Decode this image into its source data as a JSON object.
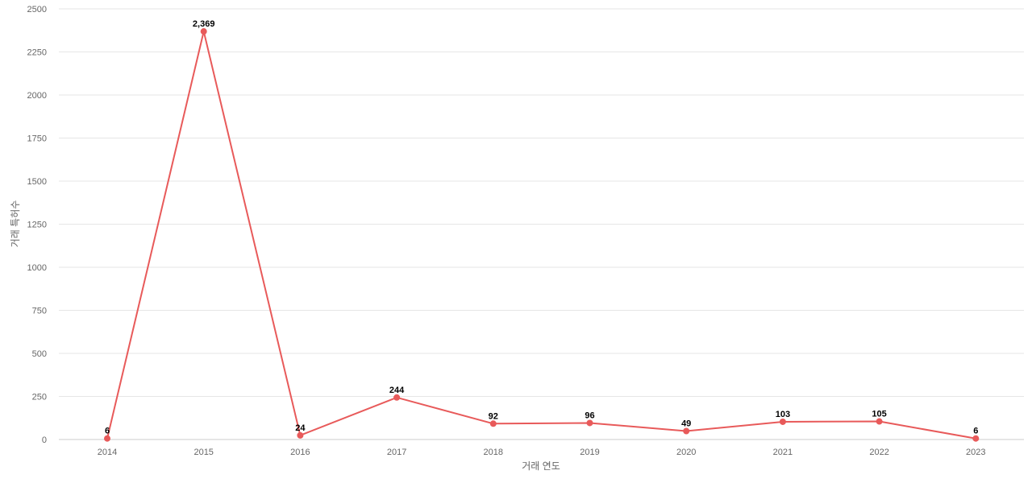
{
  "chart_data": {
    "type": "line",
    "title": "",
    "xlabel": "거래 연도",
    "ylabel": "거래 특허수",
    "categories": [
      "2014",
      "2015",
      "2016",
      "2017",
      "2018",
      "2019",
      "2020",
      "2021",
      "2022",
      "2023"
    ],
    "series": [
      {
        "values": [
          6,
          2369,
          24,
          244,
          92,
          96,
          49,
          103,
          105,
          6
        ],
        "color": "#e85a5a"
      }
    ],
    "data_labels": [
      "6",
      "2,369",
      "24",
      "244",
      "92",
      "96",
      "49",
      "103",
      "105",
      "6"
    ],
    "yticks": [
      "0",
      "250",
      "500",
      "750",
      "1000",
      "1250",
      "1500",
      "1750",
      "2000",
      "2250",
      "2500"
    ],
    "ylim": [
      0,
      2500
    ],
    "grid": true,
    "legend": "none"
  }
}
